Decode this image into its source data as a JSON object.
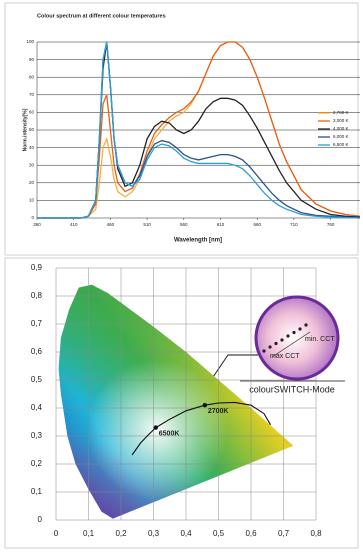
{
  "chart_data": [
    {
      "type": "line",
      "title": "Colour spectrum at different colour temperatures",
      "x_label": "Wavelength [nm]",
      "y_label": "Norm.intensity[%]",
      "x": [
        360,
        400,
        420,
        430,
        440,
        445,
        450,
        455,
        460,
        465,
        470,
        480,
        490,
        500,
        510,
        520,
        530,
        540,
        550,
        560,
        570,
        580,
        590,
        600,
        610,
        620,
        630,
        640,
        650,
        660,
        670,
        680,
        690,
        700,
        720,
        740,
        760,
        780,
        800
      ],
      "series": [
        {
          "name": "2,700 K",
          "color": "#f5b03c",
          "values": [
            0,
            0,
            0,
            1,
            5,
            20,
            40,
            45,
            35,
            22,
            15,
            12,
            15,
            22,
            35,
            45,
            50,
            55,
            58,
            60,
            65,
            72,
            82,
            92,
            98,
            100,
            100,
            97,
            90,
            80,
            68,
            55,
            42,
            32,
            16,
            8,
            4,
            2,
            1
          ]
        },
        {
          "name": "3,000 K",
          "color": "#e8601c",
          "values": [
            0,
            0,
            0,
            1,
            8,
            35,
            65,
            70,
            50,
            30,
            20,
            15,
            17,
            25,
            38,
            48,
            53,
            57,
            60,
            62,
            66,
            72,
            82,
            92,
            98,
            100,
            100,
            97,
            90,
            80,
            68,
            55,
            42,
            32,
            16,
            8,
            4,
            2,
            1
          ]
        },
        {
          "name": "4,000 K",
          "color": "#222222",
          "values": [
            0,
            0,
            0,
            1,
            10,
            45,
            85,
            100,
            75,
            45,
            28,
            18,
            20,
            30,
            45,
            52,
            55,
            54,
            50,
            48,
            50,
            55,
            62,
            66,
            68,
            68,
            67,
            64,
            58,
            51,
            43,
            35,
            27,
            20,
            10,
            5,
            2,
            1,
            0.5
          ]
        },
        {
          "name": "6,000 K",
          "color": "#2b4f8f",
          "values": [
            0,
            0,
            0,
            1,
            10,
            45,
            90,
            100,
            75,
            45,
            30,
            20,
            18,
            24,
            35,
            42,
            44,
            43,
            40,
            36,
            34,
            33,
            34,
            35,
            36,
            36,
            35,
            33,
            29,
            24,
            19,
            14,
            10,
            7,
            3,
            1.5,
            1,
            0.5,
            0
          ]
        },
        {
          "name": "6,500 K",
          "color": "#2a9fd8",
          "values": [
            0,
            0,
            0,
            1,
            10,
            45,
            90,
            100,
            75,
            45,
            30,
            20,
            18,
            22,
            33,
            40,
            42,
            41,
            38,
            34,
            32,
            31,
            31,
            31,
            31,
            31,
            30,
            28,
            24,
            19,
            14,
            10,
            7,
            5,
            2,
            1,
            0.5,
            0.2,
            0
          ]
        }
      ],
      "xlim": [
        360,
        800
      ],
      "xticks": [
        360,
        410,
        460,
        510,
        560,
        610,
        660,
        710,
        760
      ],
      "ylim": [
        0,
        100
      ],
      "yticks": [
        0,
        10,
        20,
        30,
        40,
        50,
        60,
        70,
        80,
        90,
        100
      ],
      "grid": true,
      "legend": "right"
    },
    {
      "type": "chromaticity",
      "xlim": [
        0,
        0.8
      ],
      "ylim": [
        0,
        0.9
      ],
      "xticks": [
        0,
        {
          "value": 0.1,
          "label": "0,1"
        },
        {
          "value": 0.2,
          "label": "0,2"
        },
        {
          "value": 0.3,
          "label": "0,3"
        },
        {
          "value": 0.4,
          "label": "0,4"
        },
        {
          "value": 0.5,
          "label": "0,5"
        },
        {
          "value": 0.6,
          "label": "0,6"
        },
        {
          "value": 0.7,
          "label": "0,7"
        },
        {
          "value": 0.8,
          "label": "0,8"
        }
      ],
      "yticks": [
        0,
        {
          "value": 0.1,
          "label": "0,1"
        },
        {
          "value": 0.2,
          "label": "0,2"
        },
        {
          "value": 0.3,
          "label": "0,3"
        },
        {
          "value": 0.4,
          "label": "0,4"
        },
        {
          "value": 0.5,
          "label": "0,5"
        },
        {
          "value": 0.6,
          "label": "0,6"
        },
        {
          "value": 0.7,
          "label": "0,7"
        },
        {
          "value": 0.8,
          "label": "0,8"
        },
        {
          "value": 0.9,
          "label": "0,9"
        }
      ],
      "grid": true,
      "gamut": {
        "x": [
          0.175,
          0.14,
          0.1,
          0.06,
          0.035,
          0.015,
          0.008,
          0.015,
          0.04,
          0.07,
          0.11,
          0.16,
          0.23,
          0.3,
          0.4,
          0.5,
          0.6,
          0.73
        ],
        "y": [
          0.005,
          0.03,
          0.11,
          0.2,
          0.3,
          0.45,
          0.54,
          0.65,
          0.75,
          0.83,
          0.84,
          0.81,
          0.75,
          0.69,
          0.6,
          0.5,
          0.4,
          0.265
        ]
      },
      "locus": {
        "x": [
          0.234,
          0.26,
          0.285,
          0.307,
          0.35,
          0.4,
          0.458,
          0.5,
          0.55,
          0.6,
          0.64,
          0.66
        ],
        "y": [
          0.232,
          0.275,
          0.305,
          0.33,
          0.36,
          0.39,
          0.41,
          0.418,
          0.42,
          0.41,
          0.38,
          0.34
        ]
      },
      "points": [
        {
          "label": "6500K",
          "x": 0.307,
          "y": 0.33
        },
        {
          "label": "2700K",
          "x": 0.458,
          "y": 0.41
        }
      ],
      "annotations": [
        "colourSWITCH-Mode",
        "min. CCT",
        "max CCT"
      ]
    }
  ]
}
